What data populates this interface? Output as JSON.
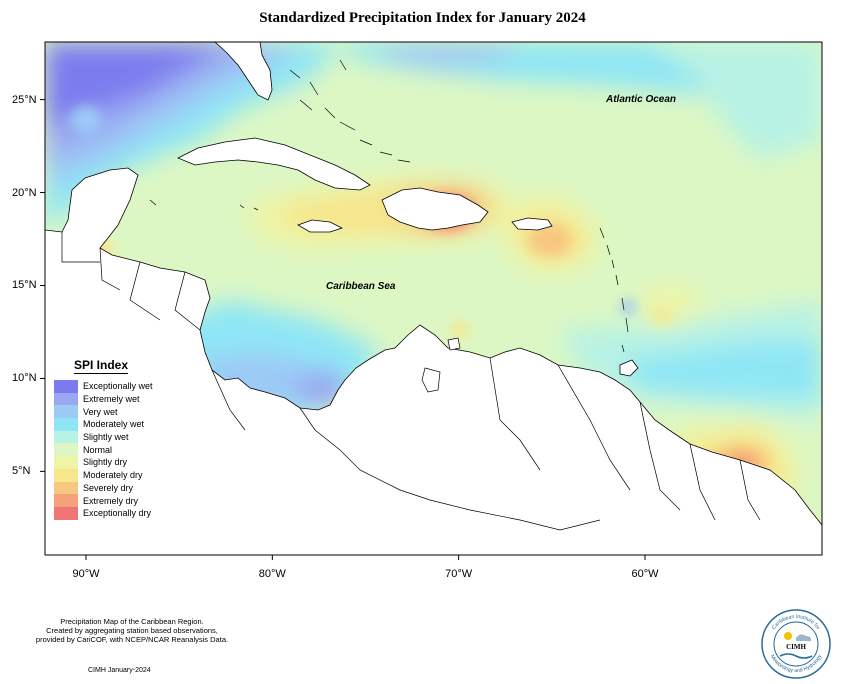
{
  "title": "Standardized Precipitation Index for January 2024",
  "labels": {
    "atlantic": "Atlantic Ocean",
    "caribbean": "Caribbean Sea"
  },
  "axes": {
    "x_ticks": [
      "90°W",
      "80°W",
      "70°W",
      "60°W"
    ],
    "x_values": [
      -90,
      -80,
      -70,
      -60
    ],
    "y_ticks": [
      "25°N",
      "20°N",
      "15°N",
      "10°N",
      "5°N"
    ],
    "y_values": [
      25,
      20,
      15,
      10,
      5
    ],
    "lon_range": [
      -92.2,
      -50.5
    ],
    "lat_range": [
      0.5,
      28.1
    ]
  },
  "legend": {
    "title": "SPI Index",
    "items": [
      {
        "label": "Exceptionally wet",
        "color": "#7b7bef"
      },
      {
        "label": "Extremely wet",
        "color": "#9aa8f2"
      },
      {
        "label": "Very wet",
        "color": "#9ccaf5"
      },
      {
        "label": "Moderately wet",
        "color": "#8ee6f5"
      },
      {
        "label": "Slightly wet",
        "color": "#b8f2e4"
      },
      {
        "label": "Normal",
        "color": "#dcf7c4"
      },
      {
        "label": "Slightly dry",
        "color": "#eef5a6"
      },
      {
        "label": "Moderately dry",
        "color": "#f6e68c"
      },
      {
        "label": "Severely dry",
        "color": "#f7c77f"
      },
      {
        "label": "Extremely dry",
        "color": "#f5a27a"
      },
      {
        "label": "Exceptionally dry",
        "color": "#f07575"
      }
    ]
  },
  "footer": {
    "line1": "Precipitation Map of the Caribbean Region.",
    "line2": "Created by aggregating station based observations,",
    "line3": "provided by CariCOF, with NCEP/NCAR Reanalysis Data.",
    "date": "CIMH January-2024"
  },
  "logo": {
    "top_text": "Caribbean Institute for",
    "center_text": "CIMH",
    "bottom_text": "Meteorology and Hydrology"
  }
}
